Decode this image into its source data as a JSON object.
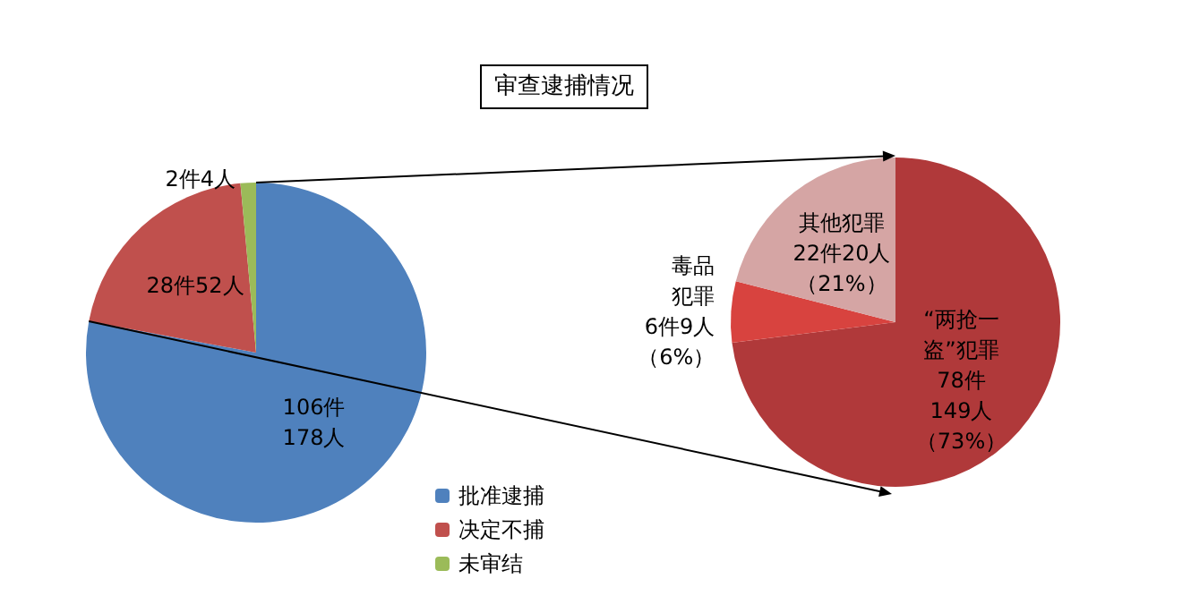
{
  "chart_data": [
    {
      "type": "pie",
      "title": "审查逮捕情况",
      "categories": [
        "批准逮捕",
        "决定不捕",
        "未审结"
      ],
      "values": [
        106,
        28,
        2
      ],
      "colors": [
        "#4f81bd",
        "#c0504d",
        "#9bbb59"
      ],
      "value_labels": [
        "106件178人",
        "28件52人",
        "2件4人"
      ],
      "legend": "bottom right"
    },
    {
      "type": "pie",
      "categories": [
        "“两抢一盗”犯罪",
        "毒品犯罪",
        "其他犯罪"
      ],
      "values": [
        73,
        6,
        21
      ],
      "colors": [
        "#b0393a",
        "#d8433f",
        "#d5a5a4"
      ],
      "value_labels": [
        "78件149人（73%）",
        "6件9人（6%）",
        "22件20人（21%）"
      ]
    }
  ]
}
